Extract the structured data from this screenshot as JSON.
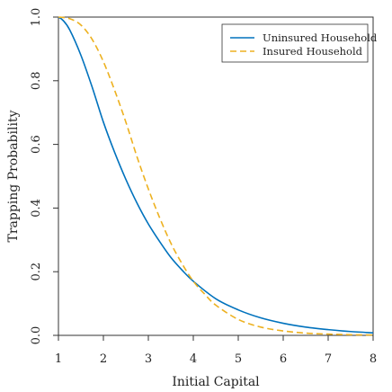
{
  "chart_data": {
    "type": "line",
    "title": "",
    "xlabel": "Initial Capital",
    "ylabel": "Trapping Probability",
    "xlim": [
      1,
      8
    ],
    "ylim": [
      0,
      1
    ],
    "xticks": [
      1,
      2,
      3,
      4,
      5,
      6,
      7,
      8
    ],
    "xtick_labels": [
      "1",
      "2",
      "3",
      "4",
      "5",
      "6",
      "7",
      "8"
    ],
    "yticks": [
      0,
      0.2,
      0.4,
      0.6,
      0.8,
      1
    ],
    "ytick_labels": [
      "0.0",
      "0.2",
      "0.4",
      "0.6",
      "0.8",
      "1.0"
    ],
    "grid": false,
    "legend_position": "top-right",
    "series": [
      {
        "name": "Uninsured Household",
        "color": "#0072BD",
        "line_style": "solid",
        "x": [
          1.0,
          1.1,
          1.25,
          1.5,
          1.75,
          2.0,
          2.25,
          2.5,
          2.75,
          3.0,
          3.25,
          3.5,
          3.75,
          4.0,
          4.5,
          5.0,
          5.5,
          6.0,
          6.5,
          7.0,
          7.5,
          8.0
        ],
        "y": [
          1.0,
          0.99,
          0.96,
          0.88,
          0.78,
          0.67,
          0.575,
          0.49,
          0.415,
          0.35,
          0.295,
          0.245,
          0.205,
          0.17,
          0.115,
          0.08,
          0.055,
          0.038,
          0.026,
          0.018,
          0.012,
          0.008
        ]
      },
      {
        "name": "Insured Household",
        "color": "#EDB120",
        "line_style": "dashed",
        "x": [
          1.0,
          1.25,
          1.5,
          1.75,
          2.0,
          2.25,
          2.5,
          2.75,
          3.0,
          3.25,
          3.5,
          3.75,
          4.0,
          4.25,
          4.5,
          5.0,
          5.5,
          6.0,
          6.5,
          7.0,
          7.5,
          8.0
        ],
        "y": [
          1.0,
          0.995,
          0.975,
          0.93,
          0.86,
          0.77,
          0.67,
          0.56,
          0.46,
          0.37,
          0.29,
          0.225,
          0.17,
          0.13,
          0.095,
          0.05,
          0.026,
          0.014,
          0.007,
          0.004,
          0.002,
          0.001
        ]
      }
    ]
  }
}
